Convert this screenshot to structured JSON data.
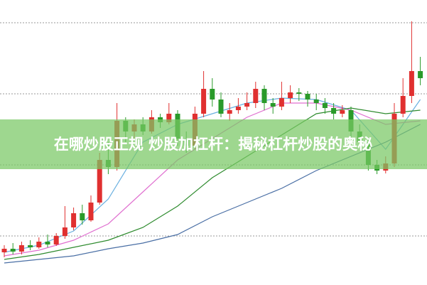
{
  "chart_data": {
    "type": "candlestick",
    "title": "在哪炒股正规 炒股加杠杆：揭秘杠杆炒股的奥秘",
    "ylim": [
      0,
      400
    ],
    "gridlines": [
      68,
      168,
      268,
      368
    ],
    "grid": true,
    "up_color": "#e03030",
    "down_color": "#2a9a2a",
    "open": [
      45,
      50,
      46,
      55,
      52,
      60,
      56,
      68,
      80,
      100,
      90,
      115,
      175,
      165,
      230,
      215,
      225,
      215,
      235,
      228,
      240,
      205,
      195,
      240,
      275,
      260,
      240,
      245,
      250,
      255,
      275,
      255,
      250,
      262,
      270,
      268,
      260,
      255,
      248,
      240,
      245,
      215,
      200,
      168,
      160,
      170,
      240,
      265,
      300
    ],
    "close": [
      50,
      46,
      55,
      52,
      60,
      56,
      68,
      80,
      100,
      90,
      115,
      175,
      165,
      230,
      215,
      225,
      215,
      235,
      228,
      240,
      205,
      195,
      240,
      275,
      260,
      240,
      245,
      250,
      255,
      275,
      255,
      250,
      262,
      270,
      268,
      260,
      255,
      248,
      240,
      245,
      215,
      200,
      168,
      160,
      170,
      240,
      265,
      300,
      290
    ],
    "high": [
      55,
      58,
      60,
      62,
      66,
      70,
      72,
      110,
      108,
      112,
      125,
      185,
      200,
      255,
      235,
      232,
      235,
      245,
      240,
      255,
      245,
      215,
      250,
      300,
      290,
      270,
      255,
      262,
      270,
      285,
      280,
      262,
      285,
      280,
      276,
      272,
      268,
      262,
      255,
      252,
      250,
      225,
      205,
      175,
      180,
      255,
      290,
      370,
      320
    ],
    "low": [
      38,
      42,
      42,
      48,
      50,
      52,
      54,
      64,
      76,
      84,
      88,
      112,
      155,
      160,
      200,
      205,
      210,
      212,
      220,
      225,
      195,
      185,
      190,
      235,
      250,
      235,
      230,
      240,
      245,
      248,
      245,
      240,
      245,
      255,
      258,
      250,
      245,
      240,
      232,
      235,
      205,
      195,
      160,
      155,
      156,
      165,
      235,
      255,
      280
    ],
    "ma_x": [
      0,
      4,
      8,
      12,
      16,
      20,
      24,
      28,
      32,
      36,
      40,
      44,
      48
    ],
    "series": [
      {
        "color": "#6ab0e0",
        "values": [
          45,
          55,
          75,
          120,
          200,
          225,
          240,
          255,
          262,
          260,
          245,
          190,
          260
        ]
      },
      {
        "color": "#e070d0",
        "values": [
          40,
          48,
          62,
          85,
          130,
          175,
          205,
          235,
          255,
          255,
          245,
          225,
          230
        ]
      },
      {
        "color": "#2e8b2e",
        "values": [
          35,
          42,
          52,
          62,
          80,
          110,
          150,
          180,
          210,
          240,
          248,
          240,
          245
        ]
      },
      {
        "color": "#4a6fa5",
        "values": [
          30,
          35,
          40,
          50,
          58,
          70,
          95,
          115,
          135,
          160,
          180,
          200,
          225
        ]
      }
    ]
  }
}
